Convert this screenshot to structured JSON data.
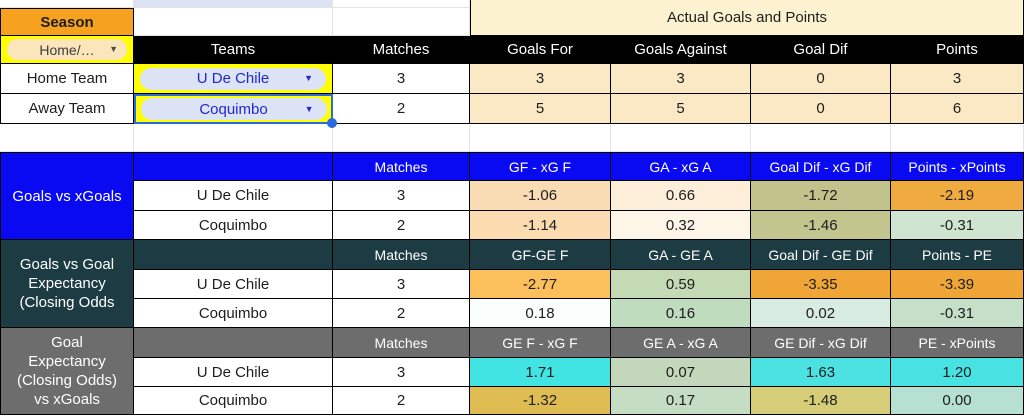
{
  "colors": {
    "header_black": "#000000",
    "season_bg": "#f6a21f",
    "yellow": "#ffff00",
    "banner_bg": "#fdf2d0",
    "cream": "#fbe8c4",
    "blue_section": "#0a0af2",
    "teal_section": "#1d3b43",
    "gray_section": "#6d6d6d",
    "pill_blue": "#dce3f5",
    "pill_peach": "#fbe5bb",
    "selection_blue": "#2b6be0",
    "white": "#ffffff"
  },
  "top": {
    "season_label": "Season",
    "filter_label": "Home/…",
    "banner": "Actual Goals and Points",
    "col_headers": [
      "Teams",
      "Matches",
      "Goals For",
      "Goals Against",
      "Goal Dif",
      "Points"
    ],
    "rows": [
      {
        "label": "Home Team",
        "team": "U De Chile",
        "matches": "3",
        "goals_for": "3",
        "goals_against": "3",
        "goal_dif": "0",
        "points": "3"
      },
      {
        "label": "Away Team",
        "team": "Coquimbo",
        "matches": "2",
        "goals_for": "5",
        "goals_against": "5",
        "goal_dif": "0",
        "points": "6"
      }
    ]
  },
  "sections": [
    {
      "label": "Goals vs xGoals",
      "columns": [
        "Matches",
        "GF - xG F",
        "GA - xG A",
        "Goal Dif - xG Dif",
        "Points - xPoints"
      ],
      "rows": [
        {
          "team": "U De Chile",
          "matches": "3",
          "cells": [
            {
              "v": "-1.06",
              "bg": "#fadcb4"
            },
            {
              "v": "0.66",
              "bg": "#fdeeda"
            },
            {
              "v": "-1.72",
              "bg": "#c2c38c"
            },
            {
              "v": "-2.19",
              "bg": "#f0ab40"
            }
          ]
        },
        {
          "team": "Coquimbo",
          "matches": "2",
          "cells": [
            {
              "v": "-1.14",
              "bg": "#fadcb0"
            },
            {
              "v": "0.32",
              "bg": "#fdf6e8"
            },
            {
              "v": "-1.46",
              "bg": "#c2c68e"
            },
            {
              "v": "-0.31",
              "bg": "#cfe5d1"
            }
          ]
        }
      ]
    },
    {
      "label": "Goals vs Goal\nExpectancy\n(Closing Odds",
      "columns": [
        "Matches",
        "GF-GE F",
        "GA - GE A",
        "Goal Dif - GE Dif",
        "Points - PE"
      ],
      "rows": [
        {
          "team": "U De Chile",
          "matches": "3",
          "cells": [
            {
              "v": "-2.77",
              "bg": "#fbc05c"
            },
            {
              "v": "0.59",
              "bg": "#c4dab4"
            },
            {
              "v": "-3.35",
              "bg": "#f0a636"
            },
            {
              "v": "-3.39",
              "bg": "#f0a636"
            }
          ]
        },
        {
          "team": "Coquimbo",
          "matches": "2",
          "cells": [
            {
              "v": "0.18",
              "bg": "#f9fdfb"
            },
            {
              "v": "0.16",
              "bg": "#bfdcbf"
            },
            {
              "v": "0.02",
              "bg": "#d9ece2"
            },
            {
              "v": "-0.31",
              "bg": "#c5dfc8"
            }
          ]
        }
      ]
    },
    {
      "label": "Goal\nExpectancy\n(Closing Odds)\nvs xGoals",
      "columns": [
        "Matches",
        "GE F - xG F",
        "GE A - xG A",
        "GE Dif - xG Dif",
        "PE - xPoints"
      ],
      "rows": [
        {
          "team": "U De Chile",
          "matches": "3",
          "cells": [
            {
              "v": "1.71",
              "bg": "#42e3e3"
            },
            {
              "v": "0.07",
              "bg": "#c3d8bb"
            },
            {
              "v": "1.63",
              "bg": "#4de2e2"
            },
            {
              "v": "1.20",
              "bg": "#48e2e2"
            }
          ]
        },
        {
          "team": "Coquimbo",
          "matches": "2",
          "cells": [
            {
              "v": "-1.32",
              "bg": "#dfbc52"
            },
            {
              "v": "0.17",
              "bg": "#c5ddc3"
            },
            {
              "v": "-1.48",
              "bg": "#d6cd78"
            },
            {
              "v": "0.00",
              "bg": "#b6e0d2"
            }
          ]
        }
      ]
    }
  ]
}
